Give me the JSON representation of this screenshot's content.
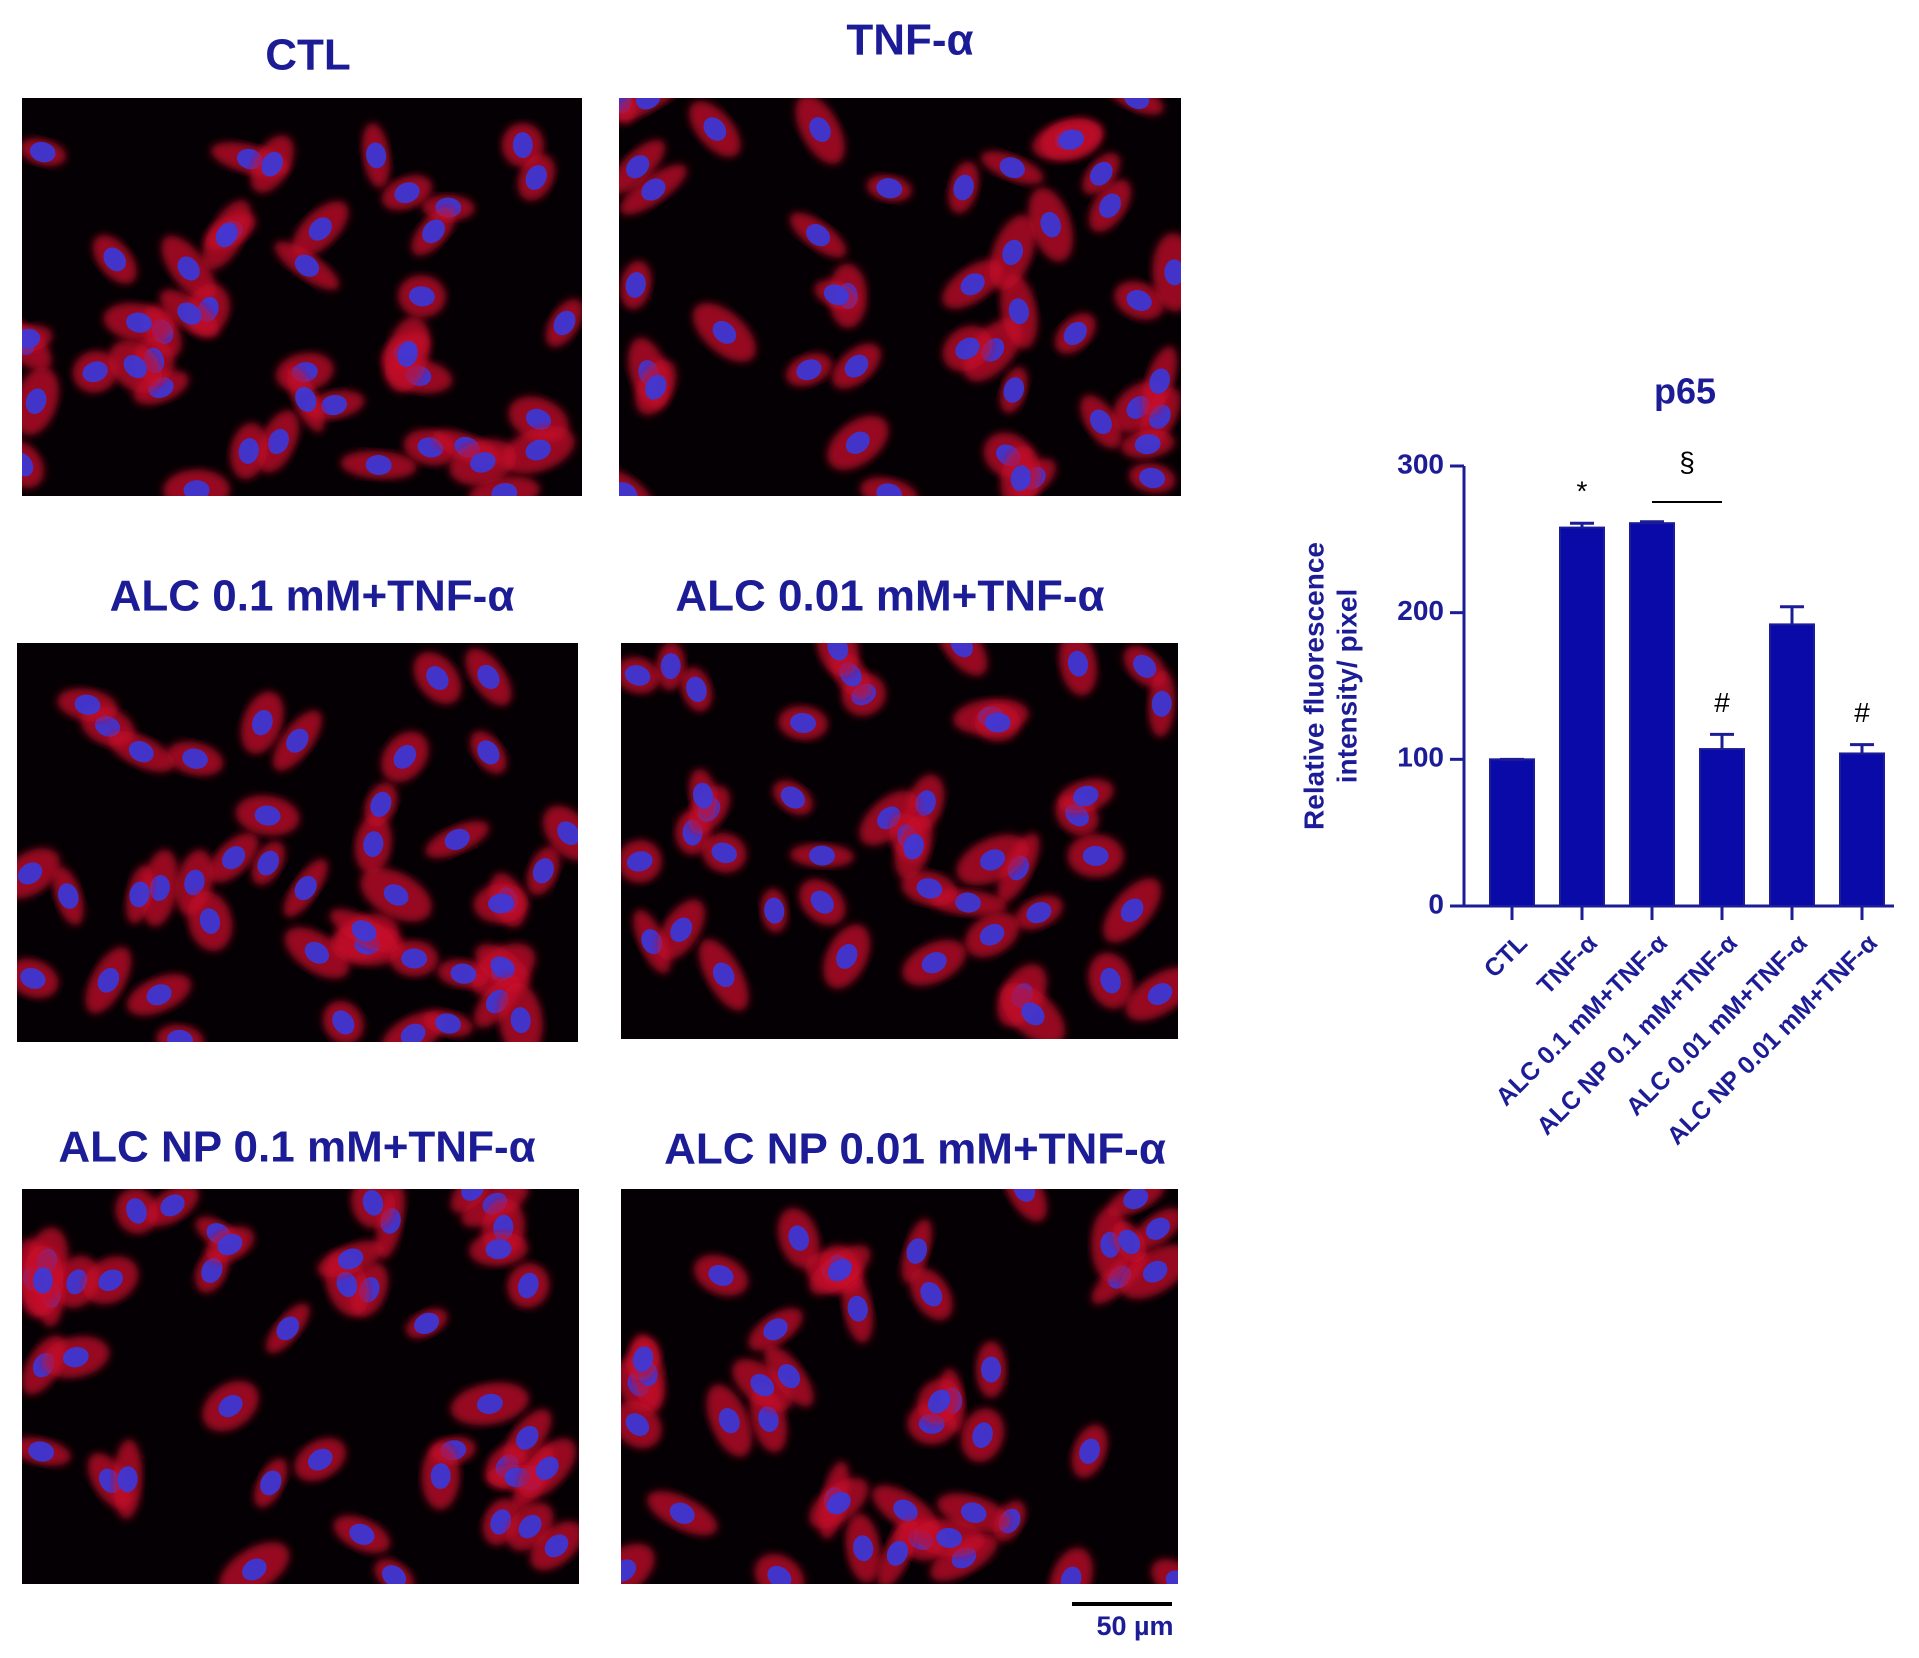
{
  "panels": [
    {
      "title": "CTL"
    },
    {
      "title": "TNF-α"
    },
    {
      "title": "ALC 0.1 mM+TNF-α"
    },
    {
      "title": "ALC 0.01 mM+TNF-α"
    },
    {
      "title": "ALC NP 0.1 mM+TNF-α"
    },
    {
      "title": "ALC NP 0.01 mM+TNF-α"
    }
  ],
  "scale_bar_label": "50 µm",
  "chart_data": {
    "type": "bar",
    "title": "p65",
    "ylabel": [
      "Relative fluorescence",
      "intensity/ pixel"
    ],
    "categories": [
      "CTL",
      "TNF-α",
      "ALC 0.1 mM+TNF-α",
      "ALC NP 0.1 mM+TNF-α",
      "ALC 0.01 mM+TNF-α",
      "ALC NP 0.01 mM+TNF-α"
    ],
    "values": [
      100,
      258,
      261,
      107,
      192,
      104
    ],
    "errors": [
      0,
      3,
      1,
      10,
      12,
      6
    ],
    "color": "#0a0aa8",
    "ylim": [
      0,
      300
    ],
    "yticks": [
      0,
      100,
      200,
      300
    ],
    "annotations": [
      {
        "text": "*",
        "category": 1
      },
      {
        "text": "§",
        "span": [
          2,
          3
        ]
      },
      {
        "text": "#",
        "category": 3
      },
      {
        "text": "#",
        "category": 5
      }
    ]
  }
}
